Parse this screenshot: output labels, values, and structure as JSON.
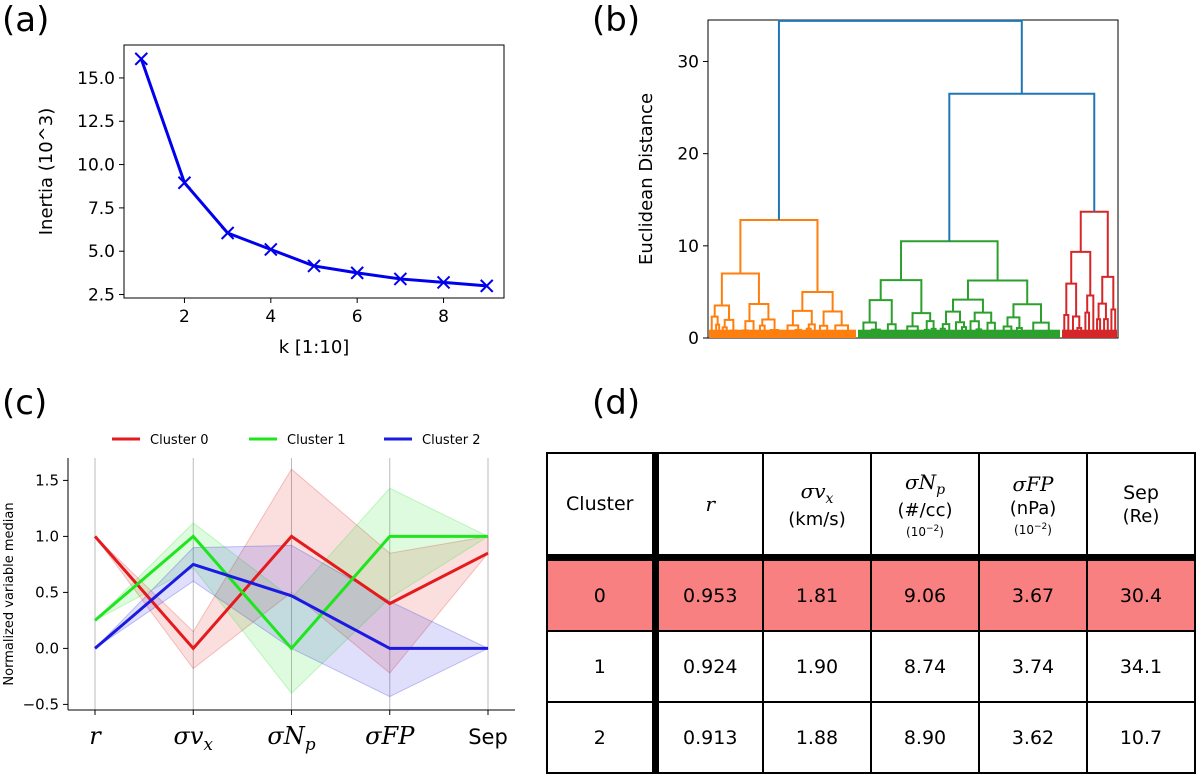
{
  "panel_labels": {
    "a": "(a)",
    "b": "(b)",
    "c": "(c)",
    "d": "(d)"
  },
  "chart_data": [
    {
      "id": "a",
      "type": "line",
      "title": "",
      "xlabel": "k [1:10]",
      "ylabel": "Inertia (10^3)",
      "x": [
        1,
        2,
        3,
        4,
        5,
        6,
        7,
        8,
        9
      ],
      "y": [
        16.1,
        8.95,
        6.05,
        5.1,
        4.15,
        3.75,
        3.4,
        3.2,
        3.0
      ],
      "xlim": [
        0.6,
        9.4
      ],
      "ylim": [
        2.3,
        16.9
      ],
      "xticks": [
        2,
        4,
        6,
        8
      ],
      "yticks": [
        2.5,
        5.0,
        7.5,
        10.0,
        12.5,
        15.0
      ],
      "ytick_labels": [
        "2.5",
        "5.0",
        "7.5",
        "10.0",
        "12.5",
        "15.0"
      ],
      "marker": "x",
      "color": "#0000ee"
    },
    {
      "id": "b",
      "type": "dendrogram",
      "ylabel": "Euclidean Distance",
      "ylim": [
        0,
        34.5
      ],
      "yticks": [
        0,
        10,
        20,
        30
      ],
      "clusters": [
        {
          "color": "#ff7f0e",
          "height": 12.8
        },
        {
          "color": "#2ca02c",
          "height": 10.5
        },
        {
          "color": "#d62728",
          "height": 13.7
        }
      ],
      "merges": [
        {
          "height": 26.5,
          "color": "#1f77b4"
        },
        {
          "height": 34.4,
          "color": "#1f77b4"
        }
      ]
    },
    {
      "id": "c",
      "type": "line",
      "ylabel": "Normalized variable median",
      "categories": [
        "r",
        "σv_x",
        "σN_p",
        "σFP",
        "Sep"
      ],
      "ylim": [
        -0.55,
        1.7
      ],
      "yticks": [
        -0.5,
        0.0,
        0.5,
        1.0,
        1.5
      ],
      "ytick_labels": [
        "−0.5",
        "0.0",
        "0.5",
        "1.0",
        "1.5"
      ],
      "legend_position": "top",
      "series": [
        {
          "name": "Cluster 0",
          "color": "#e41a1c",
          "values": [
            1.0,
            0.0,
            1.0,
            0.4,
            0.85
          ],
          "upper": [
            1.0,
            0.15,
            1.6,
            0.85,
            1.0
          ],
          "lower": [
            1.0,
            -0.18,
            0.5,
            -0.22,
            0.85
          ]
        },
        {
          "name": "Cluster 1",
          "color": "#1fe51f",
          "values": [
            0.25,
            1.0,
            0.0,
            1.0,
            1.0
          ],
          "upper": [
            0.25,
            1.12,
            0.45,
            1.43,
            1.0
          ],
          "lower": [
            0.25,
            0.72,
            -0.4,
            0.45,
            1.0
          ]
        },
        {
          "name": "Cluster 2",
          "color": "#1a1ae0",
          "values": [
            0.0,
            0.75,
            0.47,
            0.0,
            0.0
          ],
          "upper": [
            0.0,
            0.9,
            0.92,
            0.42,
            0.0
          ],
          "lower": [
            0.0,
            0.6,
            0.0,
            -0.43,
            0.0
          ]
        }
      ]
    },
    {
      "id": "d",
      "type": "table",
      "header": {
        "cluster": "Cluster",
        "r": "r",
        "sv_sym": "σv_x",
        "sv_unit": "(km/s)",
        "np_sym": "σN_p",
        "np_unit": "(#/cc)",
        "np_scale": "(10^−2)",
        "fp_sym": "σFP",
        "fp_unit": "(nPa)",
        "fp_scale": "(10^−2)",
        "sep_name": "Sep",
        "sep_unit": "(Re)"
      },
      "rows": [
        {
          "cluster": "0",
          "r": "0.953",
          "sv": "1.81",
          "np": "9.06",
          "fp": "3.67",
          "sep": "30.4",
          "highlight": "#f98080"
        },
        {
          "cluster": "1",
          "r": "0.924",
          "sv": "1.90",
          "np": "8.74",
          "fp": "3.74",
          "sep": "34.1"
        },
        {
          "cluster": "2",
          "r": "0.913",
          "sv": "1.88",
          "np": "8.90",
          "fp": "3.62",
          "sep": "10.7"
        }
      ]
    }
  ]
}
